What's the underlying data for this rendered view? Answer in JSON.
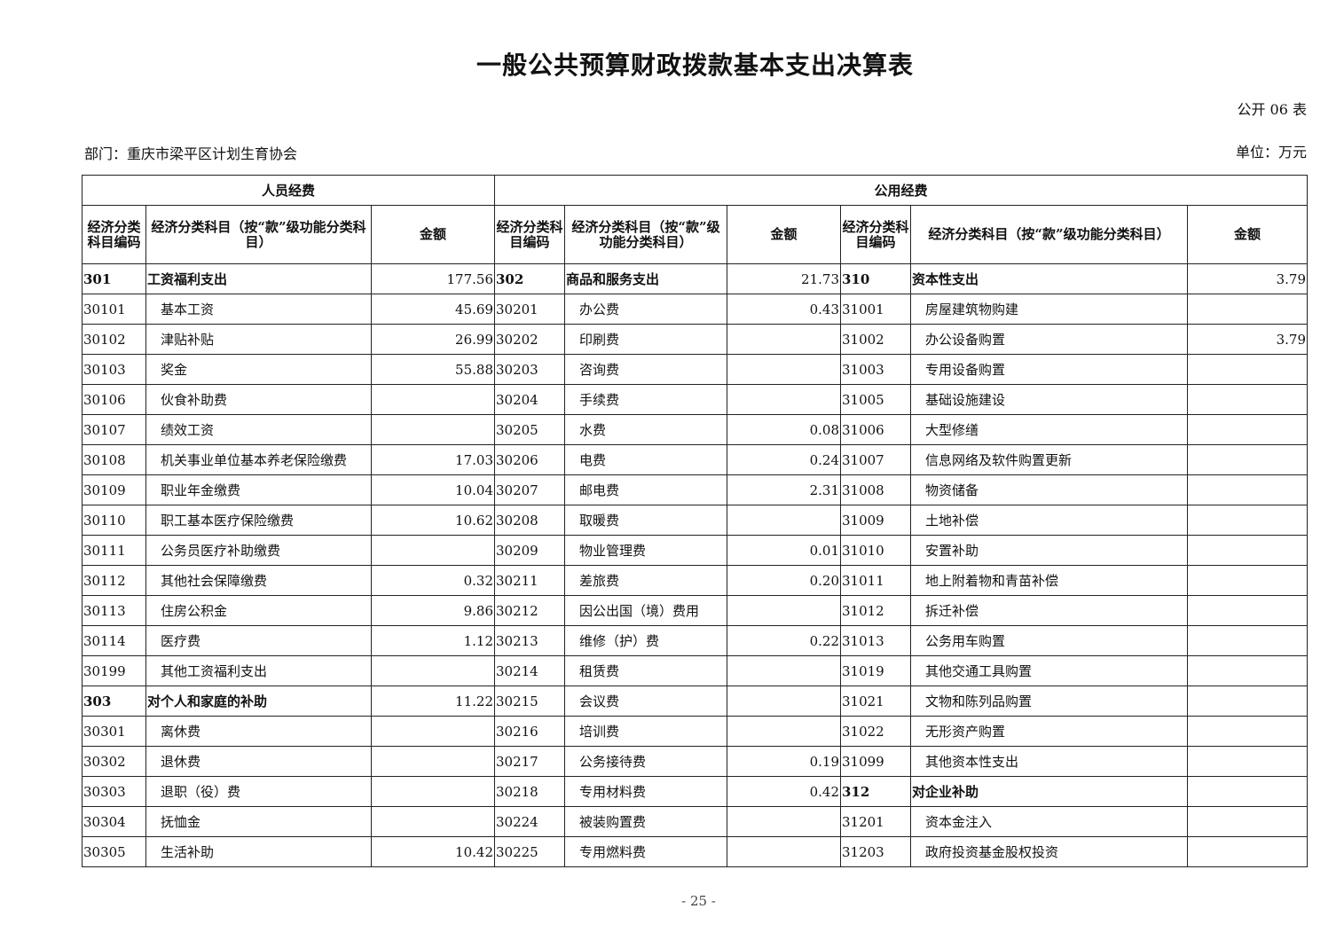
{
  "title": "一般公共预算财政拨款基本支出决算表",
  "table_no": "公开 06 表",
  "department": "部门：重庆市梁平区计划生育协会",
  "unit": "单位：万元",
  "group_headers": [
    "人员经费",
    "公用经费"
  ],
  "column_headers": [
    "经济分类科目编码",
    "经济分类科目（按“款”级功能分类科目）",
    "金额",
    "经济分类科目编码",
    "经济分类科目（按“款”级功能分类科目）",
    "金额",
    "经济分类科目编码",
    "经济分类科目（按“款”级功能分类科目）",
    "金额"
  ],
  "rows": [
    {
      "bold": [
        true,
        true,
        true
      ],
      "cells": [
        "301",
        "工资福利支出",
        "177.56",
        "302",
        "商品和服务支出",
        "21.73",
        "310",
        "资本性支出",
        "3.79"
      ]
    },
    {
      "bold": [
        false,
        false,
        false
      ],
      "cells": [
        "30101",
        "基本工资",
        "45.69",
        "30201",
        "办公费",
        "0.43",
        "31001",
        "房屋建筑物购建",
        ""
      ]
    },
    {
      "bold": [
        false,
        false,
        false
      ],
      "cells": [
        "30102",
        "津贴补贴",
        "26.99",
        "30202",
        "印刷费",
        "",
        "31002",
        "办公设备购置",
        "3.79"
      ]
    },
    {
      "bold": [
        false,
        false,
        false
      ],
      "cells": [
        "30103",
        "奖金",
        "55.88",
        "30203",
        "咨询费",
        "",
        "31003",
        "专用设备购置",
        ""
      ]
    },
    {
      "bold": [
        false,
        false,
        false
      ],
      "cells": [
        "30106",
        "伙食补助费",
        "",
        "30204",
        "手续费",
        "",
        "31005",
        "基础设施建设",
        ""
      ]
    },
    {
      "bold": [
        false,
        false,
        false
      ],
      "cells": [
        "30107",
        "绩效工资",
        "",
        "30205",
        "水费",
        "0.08",
        "31006",
        "大型修缮",
        ""
      ]
    },
    {
      "bold": [
        false,
        false,
        false
      ],
      "cells": [
        "30108",
        "机关事业单位基本养老保险缴费",
        "17.03",
        "30206",
        "电费",
        "0.24",
        "31007",
        "信息网络及软件购置更新",
        ""
      ]
    },
    {
      "bold": [
        false,
        false,
        false
      ],
      "cells": [
        "30109",
        "职业年金缴费",
        "10.04",
        "30207",
        "邮电费",
        "2.31",
        "31008",
        "物资储备",
        ""
      ]
    },
    {
      "bold": [
        false,
        false,
        false
      ],
      "cells": [
        "30110",
        "职工基本医疗保险缴费",
        "10.62",
        "30208",
        "取暖费",
        "",
        "31009",
        "土地补偿",
        ""
      ]
    },
    {
      "bold": [
        false,
        false,
        false
      ],
      "cells": [
        "30111",
        "公务员医疗补助缴费",
        "",
        "30209",
        "物业管理费",
        "0.01",
        "31010",
        "安置补助",
        ""
      ]
    },
    {
      "bold": [
        false,
        false,
        false
      ],
      "cells": [
        "30112",
        "其他社会保障缴费",
        "0.32",
        "30211",
        "差旅费",
        "0.20",
        "31011",
        "地上附着物和青苗补偿",
        ""
      ]
    },
    {
      "bold": [
        false,
        false,
        false
      ],
      "cells": [
        "30113",
        "住房公积金",
        "9.86",
        "30212",
        "因公出国（境）费用",
        "",
        "31012",
        "拆迁补偿",
        ""
      ]
    },
    {
      "bold": [
        false,
        false,
        false
      ],
      "cells": [
        "30114",
        "医疗费",
        "1.12",
        "30213",
        "维修（护）费",
        "0.22",
        "31013",
        "公务用车购置",
        ""
      ]
    },
    {
      "bold": [
        false,
        false,
        false
      ],
      "cells": [
        "30199",
        "其他工资福利支出",
        "",
        "30214",
        "租赁费",
        "",
        "31019",
        "其他交通工具购置",
        ""
      ]
    },
    {
      "bold": [
        true,
        false,
        false
      ],
      "cells": [
        "303",
        "对个人和家庭的补助",
        "11.22",
        "30215",
        "会议费",
        "",
        "31021",
        "文物和陈列品购置",
        ""
      ]
    },
    {
      "bold": [
        false,
        false,
        false
      ],
      "cells": [
        "30301",
        "离休费",
        "",
        "30216",
        "培训费",
        "",
        "31022",
        "无形资产购置",
        ""
      ]
    },
    {
      "bold": [
        false,
        false,
        false
      ],
      "cells": [
        "30302",
        "退休费",
        "",
        "30217",
        "公务接待费",
        "0.19",
        "31099",
        "其他资本性支出",
        ""
      ]
    },
    {
      "bold": [
        false,
        false,
        true
      ],
      "cells": [
        "30303",
        "退职（役）费",
        "",
        "30218",
        "专用材料费",
        "0.42",
        "312",
        "对企业补助",
        ""
      ]
    },
    {
      "bold": [
        false,
        false,
        false
      ],
      "cells": [
        "30304",
        "抚恤金",
        "",
        "30224",
        "被装购置费",
        "",
        "31201",
        "资本金注入",
        ""
      ]
    },
    {
      "bold": [
        false,
        false,
        false
      ],
      "cells": [
        "30305",
        "生活补助",
        "10.42",
        "30225",
        "专用燃料费",
        "",
        "31203",
        "政府投资基金股权投资",
        ""
      ]
    }
  ],
  "page_number": "- 25 -"
}
